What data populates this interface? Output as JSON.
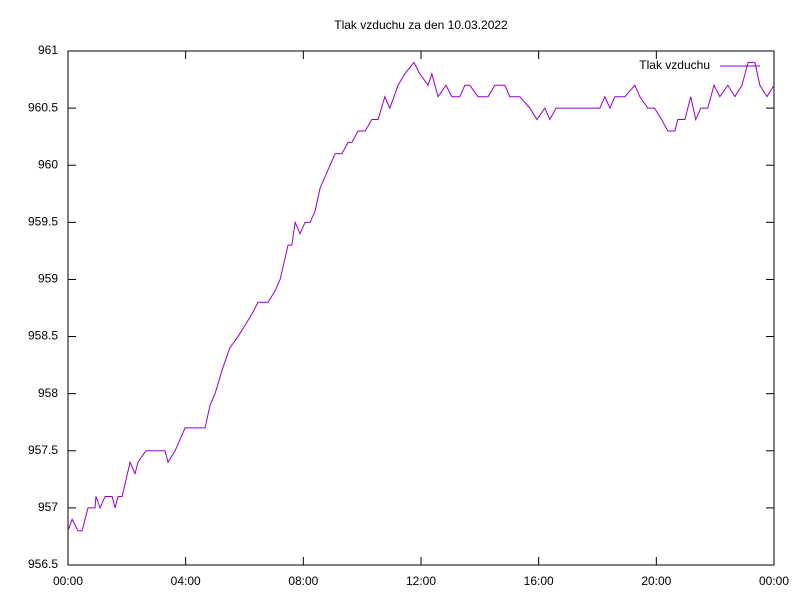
{
  "chart_data": {
    "type": "line",
    "title": "Tlak vzduchu za den 10.03.2022",
    "x": [
      0,
      0.14,
      0.34,
      0.48,
      0.68,
      0.92,
      0.95,
      1.09,
      1.26,
      1.5,
      1.6,
      1.7,
      1.84,
      2.11,
      2.28,
      2.38,
      2.65,
      3.3,
      3.4,
      3.64,
      3.98,
      4.32,
      4.49,
      4.66,
      4.83,
      5.0,
      5.23,
      5.5,
      5.78,
      6.02,
      6.26,
      6.46,
      6.8,
      7.04,
      7.21,
      7.48,
      7.61,
      7.72,
      7.89,
      8.06,
      8.23,
      8.4,
      8.57,
      8.74,
      8.91,
      9.08,
      9.31,
      9.52,
      9.65,
      9.86,
      10.1,
      10.33,
      10.54,
      10.77,
      10.94,
      11.22,
      11.45,
      11.76,
      11.96,
      12.24,
      12.37,
      12.58,
      12.85,
      13.05,
      13.32,
      13.49,
      13.66,
      13.94,
      14.28,
      14.51,
      14.85,
      15.02,
      15.36,
      15.7,
      15.94,
      16.21,
      16.38,
      16.59,
      17.06,
      18.08,
      18.25,
      18.42,
      18.59,
      18.93,
      19.27,
      19.44,
      19.71,
      19.94,
      20.18,
      20.39,
      20.63,
      20.73,
      20.97,
      21.17,
      21.34,
      21.51,
      21.75,
      21.96,
      22.16,
      22.43,
      22.67,
      22.91,
      23.12,
      23.35,
      23.52,
      23.76,
      24
    ],
    "series": [
      {
        "name": "Tlak vzduchu",
        "color": "#9400d3",
        "values": [
          956.8,
          956.9,
          956.8,
          956.8,
          957.0,
          957.0,
          957.1,
          957.0,
          957.1,
          957.1,
          957.0,
          957.1,
          957.1,
          957.4,
          957.3,
          957.4,
          957.5,
          957.5,
          957.4,
          957.5,
          957.7,
          957.7,
          957.7,
          957.7,
          957.9,
          958.0,
          958.2,
          958.4,
          958.5,
          958.6,
          958.7,
          958.8,
          958.8,
          958.9,
          959.0,
          959.3,
          959.3,
          959.5,
          959.4,
          959.5,
          959.5,
          959.6,
          959.8,
          959.9,
          960.0,
          960.1,
          960.1,
          960.2,
          960.2,
          960.3,
          960.3,
          960.4,
          960.4,
          960.6,
          960.5,
          960.7,
          960.8,
          960.9,
          960.8,
          960.7,
          960.8,
          960.6,
          960.7,
          960.6,
          960.6,
          960.7,
          960.7,
          960.6,
          960.6,
          960.7,
          960.7,
          960.6,
          960.6,
          960.5,
          960.4,
          960.5,
          960.4,
          960.5,
          960.5,
          960.5,
          960.6,
          960.5,
          960.6,
          960.6,
          960.7,
          960.6,
          960.5,
          960.5,
          960.4,
          960.3,
          960.3,
          960.4,
          960.4,
          960.6,
          960.4,
          960.5,
          960.5,
          960.7,
          960.6,
          960.7,
          960.6,
          960.7,
          960.9,
          960.9,
          960.7,
          960.6,
          960.7
        ]
      }
    ],
    "xlim": [
      0,
      24
    ],
    "xticks": [
      {
        "value": 0,
        "label": "00:00"
      },
      {
        "value": 4,
        "label": "04:00"
      },
      {
        "value": 8,
        "label": "08:00"
      },
      {
        "value": 12,
        "label": "12:00"
      },
      {
        "value": 16,
        "label": "16:00"
      },
      {
        "value": 20,
        "label": "20:00"
      },
      {
        "value": 24,
        "label": "00:00"
      }
    ],
    "ylim": [
      956.5,
      961
    ],
    "yticks": [
      956.5,
      957,
      957.5,
      958,
      958.5,
      959,
      959.5,
      960,
      960.5,
      961
    ],
    "grid": false,
    "legend": "top-right"
  }
}
